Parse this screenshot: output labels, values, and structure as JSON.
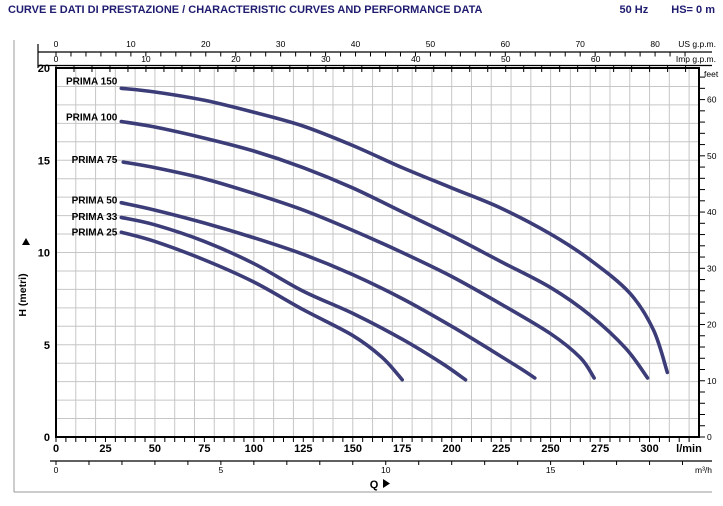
{
  "header": {
    "title": "CURVE E DATI DI PRESTAZIONE / CHARACTERISTIC CURVES AND PERFORMANCE DATA",
    "frequency": "50 Hz",
    "hs": "HS= 0 m"
  },
  "colors": {
    "accent_navy": "#1f1c70",
    "curve": "#3c3d78",
    "grid": "#c6c6c6",
    "axis": "#000000",
    "frame": "#999999",
    "background": "#ffffff"
  },
  "chart_data": {
    "type": "line",
    "title": "",
    "x_axis_title": "Q",
    "y_axis_title": "H (metri)",
    "x_primary": {
      "unit": "l/min",
      "min": 0,
      "max": 325,
      "labels": [
        0,
        25,
        50,
        75,
        100,
        125,
        150,
        175,
        200,
        225,
        250,
        275,
        300
      ],
      "minor_step": 5
    },
    "x_secondary": {
      "unit": "m³/h",
      "labels": [
        0,
        5,
        10,
        15
      ],
      "lmin_per_unit": 16.6667,
      "minor_step": 1,
      "minor_max": 19
    },
    "x_top_us": {
      "unit": "US g.p.m.",
      "labels": [
        0,
        10,
        20,
        30,
        40,
        50,
        60,
        70,
        80
      ],
      "lmin_per_unit": 3.785,
      "minor_step": 2,
      "minor_max": 84
    },
    "x_top_imp": {
      "unit": "Imp g.p.m.",
      "labels": [
        0,
        10,
        20,
        30,
        40,
        50,
        60
      ],
      "lmin_per_unit": 4.546,
      "minor_step": 2,
      "minor_max": 70
    },
    "y_primary": {
      "unit": "H (metri)",
      "min": 0,
      "max": 20,
      "labels": [
        0,
        5,
        10,
        15,
        20
      ]
    },
    "y_right": {
      "unit": "feet",
      "labels": [
        0,
        10,
        20,
        30,
        40,
        50,
        60
      ],
      "m_per_unit": 0.3048,
      "minor_step": 2,
      "minor_max": 64
    },
    "grid": {
      "x_step_lmin": 10,
      "y_step_m": 1
    },
    "series": [
      {
        "name": "PRIMA 150",
        "label_q": 31,
        "label_h": 19.3,
        "points": [
          [
            33,
            18.9
          ],
          [
            50,
            18.7
          ],
          [
            75,
            18.25
          ],
          [
            100,
            17.6
          ],
          [
            125,
            16.85
          ],
          [
            150,
            15.8
          ],
          [
            175,
            14.6
          ],
          [
            200,
            13.5
          ],
          [
            225,
            12.4
          ],
          [
            250,
            11.0
          ],
          [
            270,
            9.6
          ],
          [
            290,
            7.8
          ],
          [
            302,
            5.8
          ],
          [
            309,
            3.5
          ]
        ]
      },
      {
        "name": "PRIMA 100",
        "label_q": 31,
        "label_h": 17.35,
        "points": [
          [
            33,
            17.1
          ],
          [
            50,
            16.8
          ],
          [
            75,
            16.2
          ],
          [
            100,
            15.5
          ],
          [
            125,
            14.6
          ],
          [
            150,
            13.5
          ],
          [
            175,
            12.2
          ],
          [
            200,
            10.9
          ],
          [
            225,
            9.5
          ],
          [
            250,
            8.1
          ],
          [
            270,
            6.6
          ],
          [
            288,
            4.8
          ],
          [
            299,
            3.2
          ]
        ]
      },
      {
        "name": "PRIMA 75",
        "label_q": 31,
        "label_h": 15.05,
        "points": [
          [
            34,
            14.9
          ],
          [
            50,
            14.6
          ],
          [
            75,
            14.0
          ],
          [
            100,
            13.2
          ],
          [
            125,
            12.3
          ],
          [
            150,
            11.2
          ],
          [
            175,
            10.0
          ],
          [
            200,
            8.7
          ],
          [
            225,
            7.2
          ],
          [
            250,
            5.6
          ],
          [
            265,
            4.3
          ],
          [
            272,
            3.2
          ]
        ]
      },
      {
        "name": "PRIMA 50",
        "label_q": 31,
        "label_h": 12.85,
        "points": [
          [
            33,
            12.7
          ],
          [
            50,
            12.3
          ],
          [
            75,
            11.6
          ],
          [
            100,
            10.8
          ],
          [
            125,
            9.9
          ],
          [
            150,
            8.8
          ],
          [
            175,
            7.5
          ],
          [
            200,
            6.0
          ],
          [
            220,
            4.7
          ],
          [
            235,
            3.7
          ],
          [
            242,
            3.2
          ]
        ]
      },
      {
        "name": "PRIMA 33",
        "label_q": 31,
        "label_h": 11.95,
        "points": [
          [
            33,
            11.9
          ],
          [
            50,
            11.5
          ],
          [
            75,
            10.6
          ],
          [
            100,
            9.4
          ],
          [
            125,
            7.9
          ],
          [
            150,
            6.7
          ],
          [
            175,
            5.3
          ],
          [
            195,
            4.0
          ],
          [
            207,
            3.1
          ]
        ]
      },
      {
        "name": "PRIMA 25",
        "label_q": 31,
        "label_h": 11.1,
        "points": [
          [
            33,
            11.1
          ],
          [
            50,
            10.6
          ],
          [
            75,
            9.6
          ],
          [
            100,
            8.4
          ],
          [
            125,
            6.9
          ],
          [
            150,
            5.5
          ],
          [
            165,
            4.3
          ],
          [
            175,
            3.1
          ]
        ]
      }
    ]
  }
}
